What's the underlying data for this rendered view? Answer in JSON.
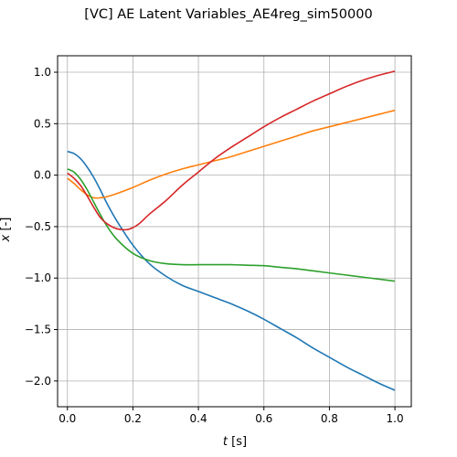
{
  "chart_data": {
    "type": "line",
    "title": "[VC] AE Latent Variables_AE4reg_sim50000",
    "xlabel_symbol": "t",
    "xlabel_unit": " [s]",
    "ylabel_symbol": "x",
    "ylabel_unit": " [-]",
    "xlim": [
      -0.03,
      1.05
    ],
    "ylim": [
      -2.25,
      1.16
    ],
    "xticks": [
      0.0,
      0.2,
      0.4,
      0.6,
      0.8,
      1.0
    ],
    "xtick_labels": [
      "0.0",
      "0.2",
      "0.4",
      "0.6",
      "0.8",
      "1.0"
    ],
    "yticks": [
      1.0,
      0.5,
      0.0,
      -0.5,
      -1.0,
      -1.5,
      -2.0
    ],
    "ytick_labels": [
      "1.0",
      "0.5",
      "0.0",
      "−0.5",
      "−1.0",
      "−1.5",
      "−2.0"
    ],
    "grid": true,
    "series": [
      {
        "color": "#1f77b4",
        "x": [
          0.0,
          0.02,
          0.04,
          0.06,
          0.08,
          0.1,
          0.12,
          0.15,
          0.2,
          0.25,
          0.3,
          0.35,
          0.4,
          0.45,
          0.5,
          0.55,
          0.6,
          0.65,
          0.7,
          0.75,
          0.8,
          0.85,
          0.9,
          0.95,
          1.0
        ],
        "y": [
          0.23,
          0.21,
          0.16,
          0.08,
          -0.02,
          -0.14,
          -0.27,
          -0.44,
          -0.68,
          -0.86,
          -0.98,
          -1.07,
          -1.13,
          -1.19,
          -1.25,
          -1.32,
          -1.4,
          -1.49,
          -1.58,
          -1.68,
          -1.77,
          -1.86,
          -1.94,
          -2.02,
          -2.09
        ]
      },
      {
        "color": "#ff7f0e",
        "x": [
          0.0,
          0.02,
          0.04,
          0.06,
          0.08,
          0.1,
          0.12,
          0.15,
          0.2,
          0.25,
          0.3,
          0.35,
          0.4,
          0.45,
          0.5,
          0.55,
          0.6,
          0.65,
          0.7,
          0.75,
          0.8,
          0.85,
          0.9,
          0.95,
          1.0
        ],
        "y": [
          -0.03,
          -0.08,
          -0.14,
          -0.19,
          -0.22,
          -0.22,
          -0.21,
          -0.18,
          -0.12,
          -0.05,
          0.01,
          0.06,
          0.1,
          0.14,
          0.18,
          0.23,
          0.28,
          0.33,
          0.38,
          0.43,
          0.47,
          0.51,
          0.55,
          0.59,
          0.63
        ]
      },
      {
        "color": "#2ca02c",
        "x": [
          0.0,
          0.02,
          0.04,
          0.06,
          0.08,
          0.1,
          0.12,
          0.15,
          0.2,
          0.25,
          0.3,
          0.35,
          0.4,
          0.45,
          0.5,
          0.55,
          0.6,
          0.65,
          0.7,
          0.75,
          0.8,
          0.85,
          0.9,
          0.95,
          1.0
        ],
        "y": [
          0.06,
          0.03,
          -0.04,
          -0.14,
          -0.26,
          -0.38,
          -0.49,
          -0.62,
          -0.76,
          -0.83,
          -0.86,
          -0.87,
          -0.87,
          -0.87,
          -0.87,
          -0.875,
          -0.88,
          -0.895,
          -0.91,
          -0.93,
          -0.95,
          -0.97,
          -0.99,
          -1.01,
          -1.03
        ]
      },
      {
        "color": "#d62728",
        "x": [
          0.0,
          0.02,
          0.04,
          0.06,
          0.08,
          0.1,
          0.12,
          0.15,
          0.18,
          0.2,
          0.22,
          0.25,
          0.3,
          0.35,
          0.4,
          0.45,
          0.5,
          0.55,
          0.6,
          0.65,
          0.7,
          0.75,
          0.8,
          0.85,
          0.9,
          0.95,
          1.0
        ],
        "y": [
          0.02,
          -0.03,
          -0.1,
          -0.2,
          -0.31,
          -0.41,
          -0.47,
          -0.52,
          -0.53,
          -0.51,
          -0.47,
          -0.38,
          -0.25,
          -0.1,
          0.03,
          0.16,
          0.27,
          0.37,
          0.47,
          0.56,
          0.64,
          0.72,
          0.79,
          0.86,
          0.92,
          0.97,
          1.01
        ]
      }
    ]
  }
}
